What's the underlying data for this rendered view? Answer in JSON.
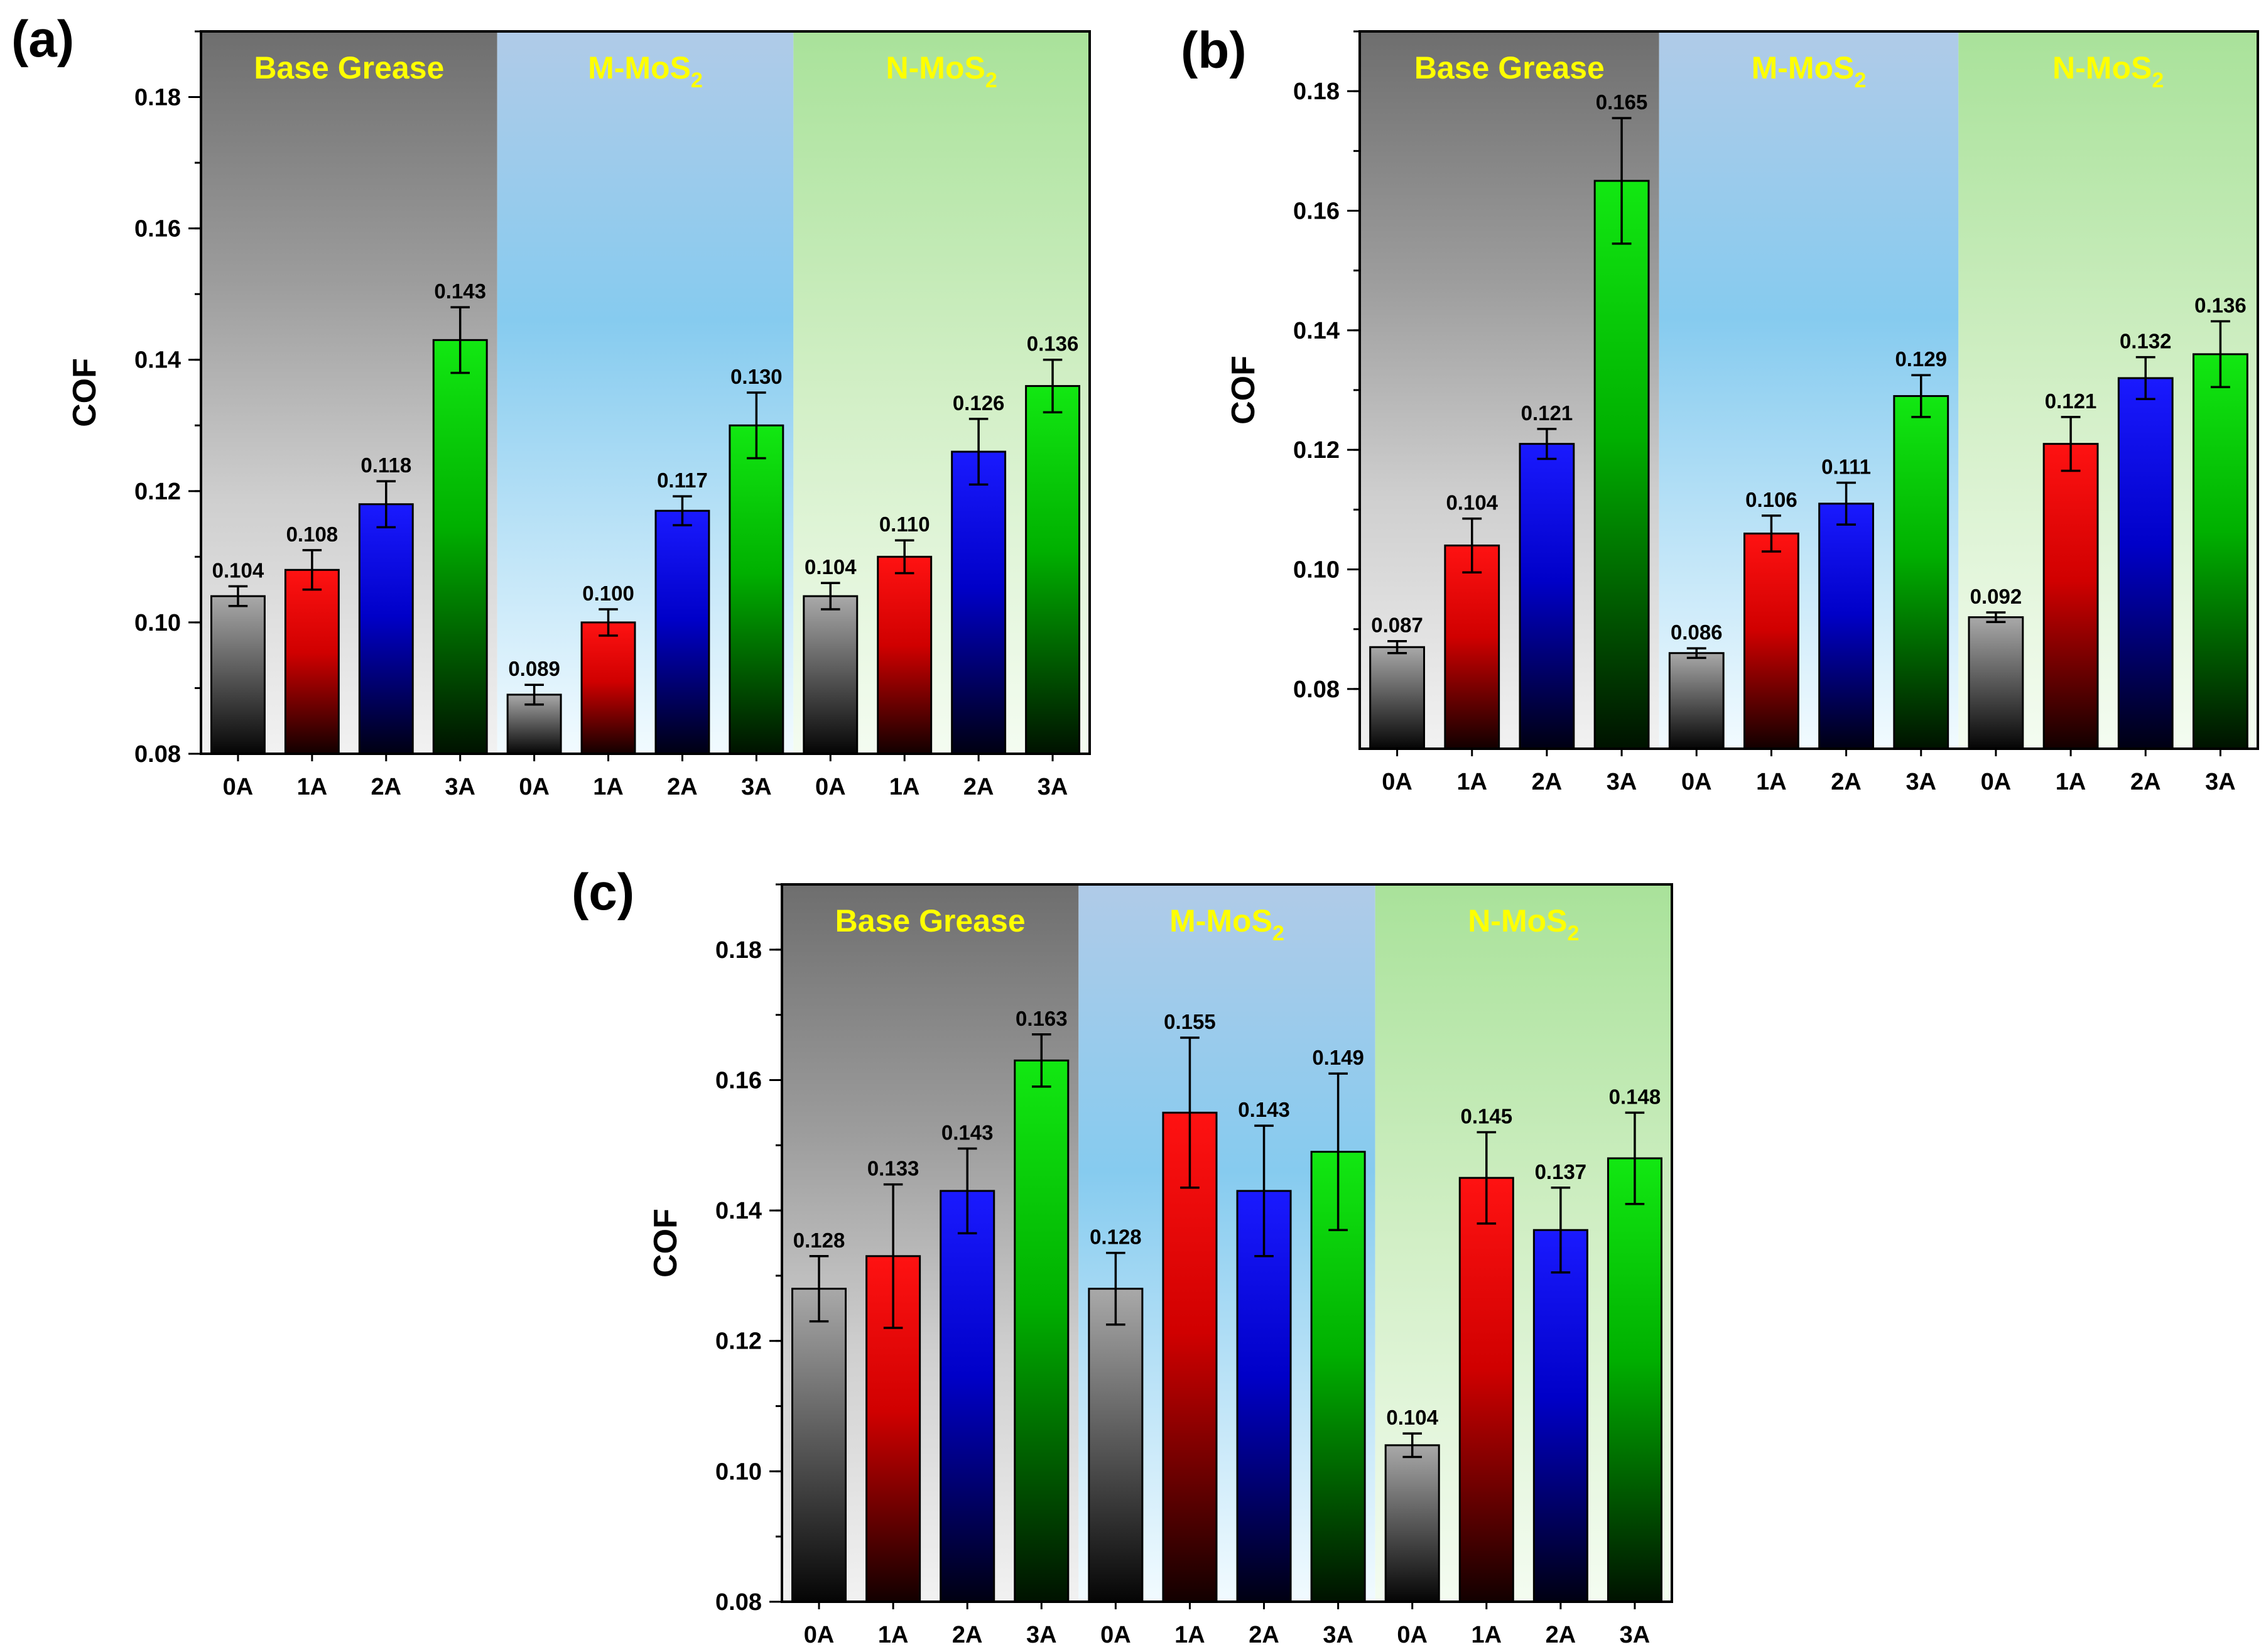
{
  "panels": [
    {
      "label": "(a)",
      "ylabel": "COF",
      "ylim": [
        0.08,
        0.19
      ],
      "yticks": [
        "0.08",
        "0.10",
        "0.12",
        "0.14",
        "0.16",
        "0.18"
      ],
      "groups": [
        {
          "name": "Base Grease",
          "sub": "",
          "categories": [
            "0A",
            "1A",
            "2A",
            "3A"
          ],
          "values": [
            0.104,
            0.108,
            0.118,
            0.143
          ],
          "errors": [
            0.0015,
            0.003,
            0.0035,
            0.005
          ],
          "labels": [
            "0.104",
            "0.108",
            "0.118",
            "0.143"
          ]
        },
        {
          "name": "M-MoS",
          "sub": "2",
          "categories": [
            "0A",
            "1A",
            "2A",
            "3A"
          ],
          "values": [
            0.089,
            0.1,
            0.117,
            0.13
          ],
          "errors": [
            0.0015,
            0.002,
            0.0022,
            0.005
          ],
          "labels": [
            "0.089",
            "0.100",
            "0.117",
            "0.130"
          ]
        },
        {
          "name": "N-MoS",
          "sub": "2",
          "categories": [
            "0A",
            "1A",
            "2A",
            "3A"
          ],
          "values": [
            0.104,
            0.11,
            0.126,
            0.136
          ],
          "errors": [
            0.002,
            0.0025,
            0.005,
            0.004
          ],
          "labels": [
            "0.104",
            "0.110",
            "0.126",
            "0.136"
          ]
        }
      ]
    },
    {
      "label": "(b)",
      "ylabel": "COF",
      "ylim": [
        0.07,
        0.19
      ],
      "yticks": [
        "0.08",
        "0.10",
        "0.12",
        "0.14",
        "0.16",
        "0.18"
      ],
      "groups": [
        {
          "name": "Base Grease",
          "sub": "",
          "categories": [
            "0A",
            "1A",
            "2A",
            "3A"
          ],
          "values": [
            0.087,
            0.104,
            0.121,
            0.165
          ],
          "errors": [
            0.001,
            0.0045,
            0.0025,
            0.0105
          ],
          "labels": [
            "0.087",
            "0.104",
            "0.121",
            "0.165"
          ]
        },
        {
          "name": "M-MoS",
          "sub": "2",
          "categories": [
            "0A",
            "1A",
            "2A",
            "3A"
          ],
          "values": [
            0.086,
            0.106,
            0.111,
            0.129
          ],
          "errors": [
            0.0008,
            0.003,
            0.0035,
            0.0035
          ],
          "labels": [
            "0.086",
            "0.106",
            "0.111",
            "0.129"
          ]
        },
        {
          "name": "N-MoS",
          "sub": "2",
          "categories": [
            "0A",
            "1A",
            "2A",
            "3A"
          ],
          "values": [
            0.092,
            0.121,
            0.132,
            0.136
          ],
          "errors": [
            0.0008,
            0.0045,
            0.0035,
            0.0055
          ],
          "labels": [
            "0.092",
            "0.121",
            "0.132",
            "0.136"
          ]
        }
      ]
    },
    {
      "label": "(c)",
      "ylabel": "COF",
      "ylim": [
        0.08,
        0.19
      ],
      "yticks": [
        "0.08",
        "0.10",
        "0.12",
        "0.14",
        "0.16",
        "0.18"
      ],
      "groups": [
        {
          "name": "Base Grease",
          "sub": "",
          "categories": [
            "0A",
            "1A",
            "2A",
            "3A"
          ],
          "values": [
            0.128,
            0.133,
            0.143,
            0.163
          ],
          "errors": [
            0.005,
            0.011,
            0.0065,
            0.004
          ],
          "labels": [
            "0.128",
            "0.133",
            "0.143",
            "0.163"
          ]
        },
        {
          "name": "M-MoS",
          "sub": "2",
          "categories": [
            "0A",
            "1A",
            "2A",
            "3A"
          ],
          "values": [
            0.128,
            0.155,
            0.143,
            0.149
          ],
          "errors": [
            0.0055,
            0.0115,
            0.01,
            0.012
          ],
          "labels": [
            "0.128",
            "0.155",
            "0.143",
            "0.149"
          ]
        },
        {
          "name": "N-MoS",
          "sub": "2",
          "categories": [
            "0A",
            "1A",
            "2A",
            "3A"
          ],
          "values": [
            0.104,
            0.145,
            0.137,
            0.148
          ],
          "errors": [
            0.0018,
            0.007,
            0.0065,
            0.007
          ],
          "labels": [
            "0.104",
            "0.145",
            "0.137",
            "0.148"
          ]
        }
      ]
    }
  ],
  "chart_data": [
    {
      "type": "bar",
      "title": "(a)",
      "xlabel": "",
      "ylabel": "COF",
      "ylim": [
        0.08,
        0.19
      ],
      "categories": [
        "0A",
        "1A",
        "2A",
        "3A"
      ],
      "series": [
        {
          "name": "Base Grease",
          "values": [
            0.104,
            0.108,
            0.118,
            0.143
          ]
        },
        {
          "name": "M-MoS2",
          "values": [
            0.089,
            0.1,
            0.117,
            0.13
          ]
        },
        {
          "name": "N-MoS2",
          "values": [
            0.104,
            0.11,
            0.126,
            0.136
          ]
        }
      ]
    },
    {
      "type": "bar",
      "title": "(b)",
      "xlabel": "",
      "ylabel": "COF",
      "ylim": [
        0.07,
        0.19
      ],
      "categories": [
        "0A",
        "1A",
        "2A",
        "3A"
      ],
      "series": [
        {
          "name": "Base Grease",
          "values": [
            0.087,
            0.104,
            0.121,
            0.165
          ]
        },
        {
          "name": "M-MoS2",
          "values": [
            0.086,
            0.106,
            0.111,
            0.129
          ]
        },
        {
          "name": "N-MoS2",
          "values": [
            0.092,
            0.121,
            0.132,
            0.136
          ]
        }
      ]
    },
    {
      "type": "bar",
      "title": "(c)",
      "xlabel": "",
      "ylabel": "COF",
      "ylim": [
        0.08,
        0.19
      ],
      "categories": [
        "0A",
        "1A",
        "2A",
        "3A"
      ],
      "series": [
        {
          "name": "Base Grease",
          "values": [
            0.128,
            0.133,
            0.143,
            0.163
          ]
        },
        {
          "name": "M-MoS2",
          "values": [
            0.128,
            0.155,
            0.143,
            0.149
          ]
        },
        {
          "name": "N-MoS2",
          "values": [
            0.104,
            0.145,
            0.137,
            0.148
          ]
        }
      ]
    }
  ],
  "colors": {
    "bar_0A": "#8a8a8a",
    "bar_1A": "#ff1010",
    "bar_2A": "#1414ff",
    "bar_3A": "#10e010",
    "group_label": "#ffff00",
    "axis": "#000000"
  }
}
